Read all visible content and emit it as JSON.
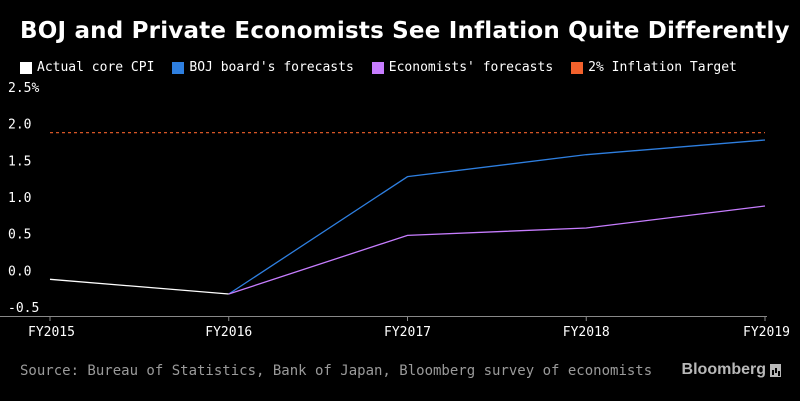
{
  "chart_data": {
    "type": "line",
    "title": "BOJ and Private Economists See Inflation Quite Differently",
    "categories": [
      "FY2015",
      "FY2016",
      "FY2017",
      "FY2018",
      "FY2019"
    ],
    "ylim": [
      -0.5,
      2.5
    ],
    "yticks": [
      "2.5%",
      "2.0",
      "1.5",
      "1.0",
      "0.5",
      "0.0",
      "-0.5"
    ],
    "ytick_values": [
      2.5,
      2.0,
      1.5,
      1.0,
      0.5,
      0.0,
      -0.5
    ],
    "grid": false,
    "legend_position": "top-left",
    "series": [
      {
        "name": "Actual core CPI",
        "color": "#ffffff",
        "values": [
          0.0,
          -0.2,
          null,
          null,
          null
        ]
      },
      {
        "name": "BOJ board's forecasts",
        "color": "#2e7fe0",
        "values": [
          null,
          -0.2,
          1.4,
          1.7,
          1.9
        ]
      },
      {
        "name": "Economists' forecasts",
        "color": "#c77dff",
        "values": [
          null,
          -0.2,
          0.6,
          0.7,
          1.0
        ]
      }
    ],
    "reference_line": {
      "name": "2% Inflation Target",
      "color": "#f2612c",
      "value": 2.0
    }
  },
  "footer": {
    "source": "Source: Bureau of Statistics, Bank of Japan, Bloomberg survey of economists",
    "brand": "Bloomberg"
  }
}
